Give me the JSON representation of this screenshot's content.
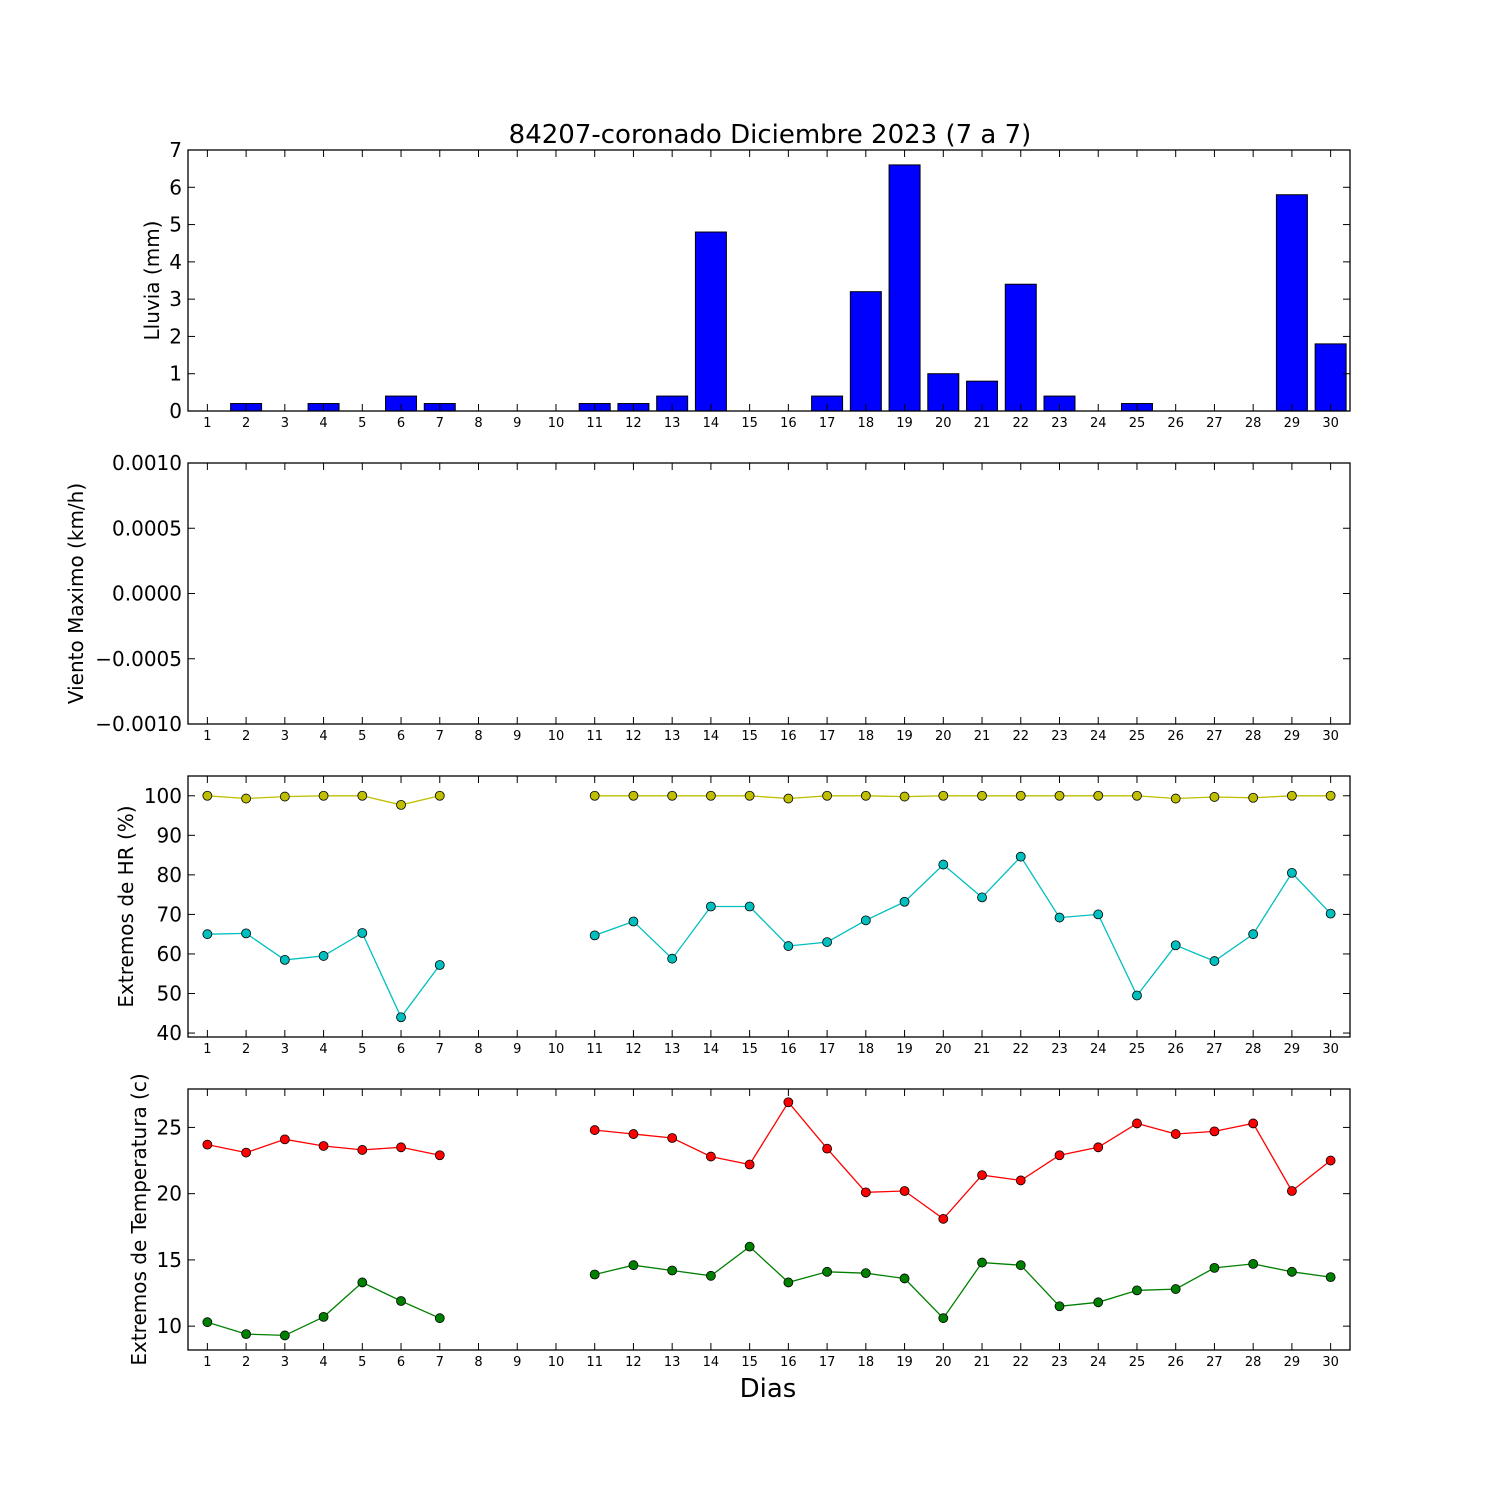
{
  "chart_data": [
    {
      "type": "bar",
      "title": "84207-coronado Diciembre 2023  (7 a 7)",
      "ylabel": "Lluvia (mm)",
      "xlabel": "",
      "x": [
        1,
        2,
        3,
        4,
        5,
        6,
        7,
        8,
        9,
        10,
        11,
        12,
        13,
        14,
        15,
        16,
        17,
        18,
        19,
        20,
        21,
        22,
        23,
        24,
        25,
        26,
        27,
        28,
        29,
        30
      ],
      "ylim": [
        0,
        7
      ],
      "yticks": [
        0,
        1,
        2,
        3,
        4,
        5,
        6,
        7
      ],
      "ytick_labels": [
        "0",
        "1",
        "2",
        "3",
        "4",
        "5",
        "6",
        "7"
      ],
      "series": [
        {
          "color": "#0000ff",
          "values": [
            0,
            0.2,
            0,
            0.2,
            0,
            0.4,
            0.2,
            0,
            0,
            0,
            0.2,
            0.2,
            0.4,
            4.8,
            0,
            0,
            0.4,
            3.2,
            6.6,
            1.0,
            0.8,
            3.4,
            0.4,
            0,
            0.2,
            0,
            0,
            0,
            5.8,
            1.8
          ]
        }
      ]
    },
    {
      "type": "line",
      "title": "",
      "ylabel": "Viento Maximo (km/h)",
      "xlabel": "",
      "x": [
        1,
        2,
        3,
        4,
        5,
        6,
        7,
        8,
        9,
        10,
        11,
        12,
        13,
        14,
        15,
        16,
        17,
        18,
        19,
        20,
        21,
        22,
        23,
        24,
        25,
        26,
        27,
        28,
        29,
        30
      ],
      "ylim": [
        -0.001,
        0.001
      ],
      "yticks": [
        -0.001,
        -0.0005,
        0,
        0.0005,
        0.001
      ],
      "ytick_labels": [
        "−0.0010",
        "−0.0005",
        "0.0000",
        "0.0005",
        "0.0010"
      ],
      "series": []
    },
    {
      "type": "line",
      "title": "",
      "ylabel": "Extremos de HR (%)",
      "xlabel": "",
      "x": [
        1,
        2,
        3,
        4,
        5,
        6,
        7,
        8,
        9,
        10,
        11,
        12,
        13,
        14,
        15,
        16,
        17,
        18,
        19,
        20,
        21,
        22,
        23,
        24,
        25,
        26,
        27,
        28,
        29,
        30
      ],
      "ylim": [
        39,
        105
      ],
      "yticks": [
        40,
        50,
        60,
        70,
        80,
        90,
        100
      ],
      "ytick_labels": [
        "40",
        "50",
        "60",
        "70",
        "80",
        "90",
        "100"
      ],
      "series": [
        {
          "color": "#bfbf00",
          "values": [
            100,
            99.3,
            99.8,
            100,
            100,
            97.7,
            100,
            null,
            null,
            null,
            100,
            100,
            100,
            100,
            100,
            99.3,
            100,
            100,
            99.8,
            100,
            100,
            100,
            100,
            100,
            100,
            99.3,
            99.7,
            99.5,
            100,
            100
          ]
        },
        {
          "color": "#00bfbf",
          "values": [
            65,
            65.2,
            58.5,
            59.5,
            65.3,
            44,
            57.2,
            null,
            null,
            null,
            64.7,
            68.2,
            58.8,
            72,
            72,
            62,
            63,
            68.5,
            73.2,
            82.6,
            74.3,
            84.6,
            69.2,
            70,
            49.5,
            62.2,
            58.2,
            65,
            80.5,
            70.2
          ]
        }
      ]
    },
    {
      "type": "line",
      "title": "",
      "ylabel": "Extremos de Temperatura (c)",
      "xlabel": "Dias",
      "x": [
        1,
        2,
        3,
        4,
        5,
        6,
        7,
        8,
        9,
        10,
        11,
        12,
        13,
        14,
        15,
        16,
        17,
        18,
        19,
        20,
        21,
        22,
        23,
        24,
        25,
        26,
        27,
        28,
        29,
        30
      ],
      "ylim": [
        8.2,
        27.9
      ],
      "yticks": [
        10,
        15,
        20,
        25
      ],
      "ytick_labels": [
        "10",
        "15",
        "20",
        "25"
      ],
      "series": [
        {
          "color": "#ff0000",
          "values": [
            23.7,
            23.1,
            24.1,
            23.6,
            23.3,
            23.5,
            22.9,
            null,
            null,
            null,
            24.8,
            24.5,
            24.2,
            22.8,
            22.2,
            26.9,
            23.4,
            20.1,
            20.2,
            18.1,
            21.4,
            21.0,
            22.9,
            23.5,
            25.3,
            24.5,
            24.7,
            25.3,
            20.2,
            22.5
          ]
        },
        {
          "color": "#008000",
          "values": [
            10.3,
            9.4,
            9.3,
            10.7,
            13.3,
            11.9,
            10.6,
            null,
            null,
            null,
            13.9,
            14.6,
            14.2,
            13.8,
            16.0,
            13.3,
            14.1,
            14.0,
            13.6,
            10.6,
            14.8,
            14.6,
            11.5,
            11.8,
            12.7,
            12.8,
            14.4,
            14.7,
            14.1,
            13.7
          ]
        }
      ]
    }
  ]
}
